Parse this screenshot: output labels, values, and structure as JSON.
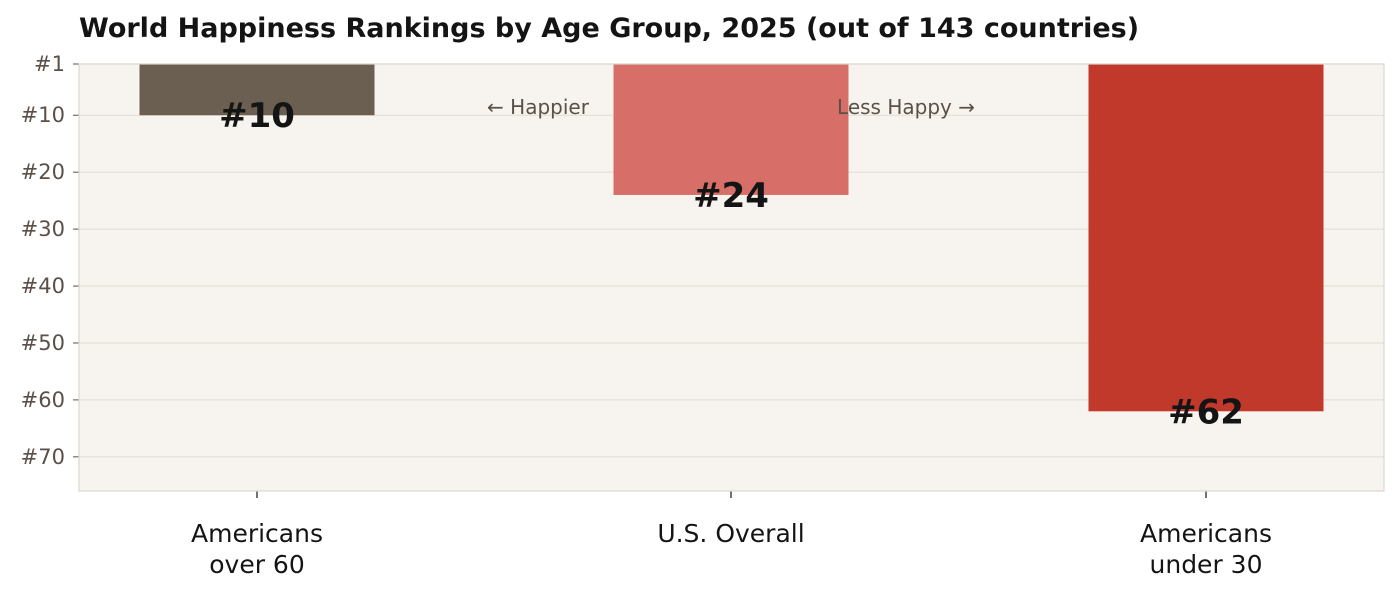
{
  "chart_data": {
    "type": "bar",
    "title": "World Happiness Rankings by Age Group, 2025 (out of 143 countries)",
    "xlabel": "",
    "ylabel": "",
    "categories": [
      "Americans\nover 60",
      "U.S. Overall",
      "Americans\nunder 30"
    ],
    "values": [
      10,
      24,
      62
    ],
    "data_labels": [
      "#10",
      "#24",
      "#62"
    ],
    "y_axis": {
      "inverted": true,
      "range": [
        1,
        76
      ],
      "ticks": [
        1,
        10,
        20,
        30,
        40,
        50,
        60,
        70
      ],
      "tick_labels": [
        "#1",
        "#10",
        "#20",
        "#30",
        "#40",
        "#50",
        "#60",
        "#70"
      ]
    },
    "colors": [
      "#6b5f52",
      "#d76f68",
      "#c0392b"
    ],
    "grid": true,
    "annotations": [
      "← Happier",
      "Less Happy →"
    ],
    "style": {
      "plot_background": "#f7f4ef",
      "grid_color": "#e2dbd2",
      "frame_color": "#ddd5cc"
    }
  }
}
